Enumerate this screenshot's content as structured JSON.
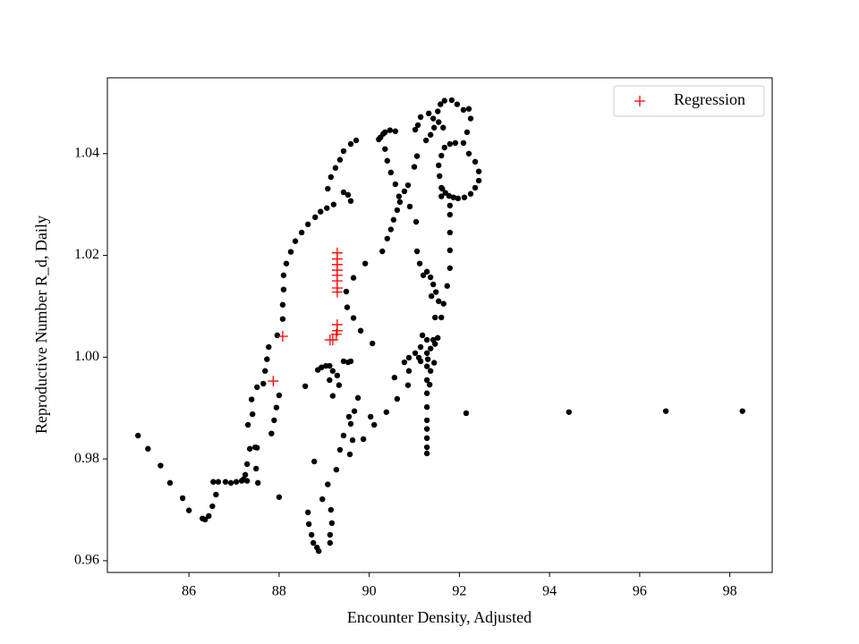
{
  "chart_data": {
    "type": "scatter",
    "xlabel": "Encounter Density, Adjusted",
    "ylabel": "Reproductive Number R_d, Daily",
    "xlim": [
      84.19,
      98.94
    ],
    "ylim": [
      0.9577,
      1.0549
    ],
    "xticks": [
      86,
      88,
      90,
      92,
      94,
      96,
      98
    ],
    "yticks": [
      0.96,
      0.98,
      {
        "value": 1,
        "label": "1.00"
      },
      1.02,
      1.04
    ],
    "grid": false,
    "legend": "upper right",
    "series": [
      {
        "color": "#000000",
        "marker": "o",
        "x": [
          84.87,
          85.09,
          85.37,
          85.58,
          85.86,
          86.0,
          86.3,
          86.36,
          86.44,
          86.52,
          86.6,
          86.54,
          86.65,
          86.81,
          86.93,
          87.05,
          87.17,
          87.29,
          87.21,
          87.25,
          87.29,
          87.31,
          87.35,
          87.41,
          87.47,
          87.53,
          87.49,
          87.51,
          87.39,
          87.51,
          87.65,
          87.69,
          87.73,
          87.77,
          87.83,
          87.89,
          87.94,
          88.0,
          88.0,
          87.96,
          88.08,
          88.08,
          88.1,
          88.1,
          88.16,
          88.26,
          88.36,
          88.5,
          88.64,
          88.8,
          88.92,
          89.06,
          89.21,
          89.08,
          89.15,
          89.25,
          89.35,
          89.43,
          89.59,
          89.71,
          89.43,
          89.53,
          89.59,
          88.78,
          88.64,
          88.66,
          88.72,
          88.76,
          88.84,
          88.88,
          88.96,
          89.08,
          89.15,
          89.17,
          89.13,
          89.13,
          89.27,
          89.35,
          89.43,
          89.55,
          89.57,
          89.63,
          89.59,
          89.67,
          89.75,
          89.87,
          90.03,
          90.11,
          90.38,
          90.62,
          90.86,
          90.88,
          90.78,
          90.56,
          88.58,
          88.86,
          88.94,
          89.04,
          89.12,
          89.19,
          89.33,
          89.43,
          89.53,
          89.59,
          89.19,
          89.29,
          89.12,
          89.51,
          89.49,
          89.65,
          89.65,
          89.81,
          89.91,
          90.07,
          90.29,
          90.4,
          90.48,
          90.54,
          90.62,
          90.68,
          90.78,
          90.86,
          90.9,
          90.66,
          90.58,
          90.48,
          90.4,
          90.35,
          90.25,
          90.35,
          90.46,
          90.58,
          90.31,
          90.21,
          91.0,
          91.06,
          91.08,
          91.14,
          91.02,
          91.04,
          91.06,
          91.12,
          91.2,
          91.38,
          91.46,
          91.52,
          91.18,
          91.14,
          91.1,
          91.14,
          90.88,
          91.02,
          91.28,
          91.28,
          91.28,
          91.28,
          91.28,
          91.28,
          91.28,
          91.28,
          91.28,
          91.28,
          91.28,
          91.36,
          91.42,
          91.46,
          91.44,
          91.36,
          91.34,
          91.3,
          91.28,
          91.36,
          91.42,
          91.48,
          91.54,
          91.6,
          91.65,
          91.73,
          91.79,
          91.79,
          91.79,
          91.79,
          91.79,
          91.6,
          91.6,
          91.56,
          91.54,
          91.6,
          91.67,
          91.79,
          91.91,
          91.26,
          91.36,
          91.44,
          91.54,
          91.52,
          91.58,
          91.67,
          91.83,
          91.95,
          92.09,
          92.21,
          92.25,
          92.17,
          92.09,
          92.21,
          92.35,
          92.43,
          92.43,
          92.35,
          92.25,
          92.11,
          91.97,
          91.87,
          91.77,
          91.69,
          91.62,
          91.42,
          91.32,
          91.64,
          92.15,
          94.43,
          96.58,
          98.28
        ],
        "values": [
          0.9846,
          0.982,
          0.9787,
          0.9753,
          0.9723,
          0.9699,
          0.9683,
          0.9681,
          0.9688,
          0.9707,
          0.973,
          0.9755,
          0.9755,
          0.9755,
          0.9753,
          0.9755,
          0.9757,
          0.9757,
          0.976,
          0.9769,
          0.979,
          0.9867,
          0.982,
          0.9888,
          0.9823,
          0.9753,
          0.9781,
          0.9822,
          0.9917,
          0.9941,
          0.9948,
          0.9973,
          0.9996,
          1.002,
          0.985,
          0.9876,
          0.9901,
          0.9925,
          0.9725,
          1.0043,
          1.0075,
          1.0103,
          1.0133,
          1.0161,
          1.0184,
          1.0207,
          1.0228,
          1.0245,
          1.0261,
          1.0275,
          1.0286,
          1.0293,
          1.03,
          1.0331,
          1.0354,
          1.0372,
          1.0388,
          1.0405,
          1.0419,
          1.0426,
          1.0324,
          1.0319,
          1.0307,
          0.9795,
          0.9695,
          0.9672,
          0.9651,
          0.9635,
          0.9626,
          0.9619,
          0.9721,
          0.975,
          0.97,
          0.9674,
          0.9651,
          0.9635,
          0.9779,
          0.9818,
          0.9846,
          0.9883,
          0.9809,
          0.9837,
          0.9869,
          0.9894,
          0.992,
          0.9839,
          0.9883,
          0.9867,
          0.9892,
          0.9918,
          0.9945,
          0.9973,
          0.999,
          0.996,
          0.9943,
          0.9975,
          0.998,
          0.9983,
          0.9983,
          0.9924,
          0.9945,
          0.9992,
          0.999,
          0.9992,
          0.9973,
          0.9964,
          0.9955,
          1.0098,
          1.0129,
          1.0156,
          1.0077,
          1.0052,
          1.0184,
          1.0027,
          1.0208,
          1.0233,
          1.0251,
          1.027,
          1.0289,
          1.0305,
          1.0326,
          1.0338,
          1.0296,
          1.0316,
          1.034,
          1.0363,
          1.0386,
          1.0409,
          1.0432,
          1.0442,
          1.0446,
          1.0444,
          1.0439,
          1.0428,
          1.0374,
          1.0395,
          1.0456,
          1.0472,
          1.0447,
          1.0266,
          1.0208,
          1.0184,
          1.0161,
          1.012,
          1.0078,
          1.0038,
          1.0043,
          1.002,
          0.9999,
          0.9992,
          0.9999,
          1.0008,
          1.0034,
          1.0008,
          0.9982,
          0.9955,
          0.9929,
          0.9902,
          0.9876,
          0.9859,
          0.9841,
          0.9823,
          0.9811,
          1.0017,
          1.0034,
          1.0026,
          0.9989,
          0.9973,
          0.9946,
          0.9996,
          1.0168,
          1.0157,
          1.0143,
          1.0128,
          1.011,
          1.0078,
          1.0105,
          1.014,
          1.0175,
          1.021,
          1.0245,
          1.028,
          1.0298,
          1.0316,
          1.0333,
          1.0356,
          1.0377,
          1.0396,
          1.0412,
          1.0419,
          1.0421,
          1.0426,
          1.0437,
          1.0451,
          1.0462,
          1.0483,
          1.0497,
          1.0504,
          1.0505,
          1.0497,
          1.0486,
          1.0488,
          1.0469,
          1.0442,
          1.0421,
          1.04,
          1.0384,
          1.0365,
          1.0347,
          1.0333,
          1.0321,
          1.0314,
          1.0312,
          1.0314,
          1.0317,
          1.0323,
          1.0331,
          1.0469,
          1.0479,
          1.0451,
          0.989,
          0.9892,
          0.9894,
          0.9894
        ]
      },
      {
        "name": "Regression",
        "color": "#ff0000",
        "marker": "+",
        "x": [
          87.87,
          88.08,
          89.29,
          89.29,
          89.29,
          89.29,
          89.29,
          89.29,
          89.29,
          89.29,
          89.19,
          89.27,
          89.29,
          89.13,
          89.29
        ],
        "values": [
          0.9953,
          1.0041,
          1.0205,
          1.0193,
          1.0182,
          1.0171,
          1.0161,
          1.015,
          1.0136,
          1.0128,
          1.0034,
          1.0045,
          1.0064,
          1.0034,
          1.0052
        ]
      }
    ]
  }
}
